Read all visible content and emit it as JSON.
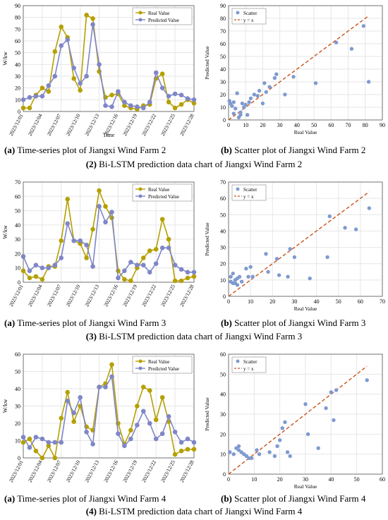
{
  "colors": {
    "real": "#b5a000",
    "predicted": "#7f86c8",
    "scatter": "#7f9ad0",
    "fit_line": "#c8531a",
    "grid": "#e6e6e6"
  },
  "x_dates": [
    "2023/12/01",
    "2023/12/02",
    "2023/12/03",
    "2023/12/04",
    "2023/12/05",
    "2023/12/06",
    "2023/12/07",
    "2023/12/08",
    "2023/12/09",
    "2023/12/10",
    "2023/12/11",
    "2023/12/12",
    "2023/12/13",
    "2023/12/14",
    "2023/12/15",
    "2023/12/16",
    "2023/12/17",
    "2023/12/18",
    "2023/12/19",
    "2023/12/20",
    "2023/12/21",
    "2023/12/22",
    "2023/12/23",
    "2023/12/24",
    "2023/12/25",
    "2023/12/26",
    "2023/12/27",
    "2023/12/28"
  ],
  "x_tick_labels": [
    "2023/12/01",
    "2023/12/04",
    "2023/12/07",
    "2023/12/10",
    "2023/12/13",
    "2023/12/16",
    "2023/12/19",
    "2023/12/22",
    "2023/12/25",
    "2023/12/28"
  ],
  "rows": [
    {
      "row_number": "(2)",
      "row_text": "Bi-LSTM prediction data chart of Jiangxi Wind Farm 2",
      "left_letter": "(a)",
      "left_text": "Time-series plot of Jiangxi Wind Farm 2",
      "right_letter": "(b)",
      "right_text": "Scatter plot of Jiangxi Wind Farm 2"
    },
    {
      "row_number": "(3)",
      "row_text": "Bi-LSTM prediction data chart of Jiangxi Wind Farm 3",
      "left_letter": "(a)",
      "left_text": "Time-series plot of Jiangxi Wind Farm 3",
      "right_letter": "(b)",
      "right_text": "Scatter plot of Jiangxi Wind Farm 3"
    },
    {
      "row_number": "(4)",
      "row_text": "Bi-LSTM prediction data chart of Jiangxi Wind Farm 4",
      "left_letter": "(a)",
      "left_text": "Time-series plot of Jiangxi Wind Farm 4",
      "right_letter": "(b)",
      "right_text": "Scatter plot of Jiangxi Wind Farm 4"
    }
  ],
  "chart_data": [
    {
      "type": "line",
      "farm": 2,
      "xlabel": "Time",
      "ylabel": "W/kw",
      "ylim": [
        0,
        90
      ],
      "yticks": [
        0,
        10,
        20,
        30,
        40,
        50,
        60,
        70,
        80,
        90
      ],
      "grid": true,
      "legend_position": "top-right",
      "series": [
        {
          "name": "Real Value",
          "values": [
            3,
            3,
            14,
            20,
            17,
            51,
            72,
            63,
            28,
            18,
            82,
            79,
            34,
            12,
            14,
            15,
            5,
            3,
            2,
            5,
            6,
            28,
            32,
            8,
            3,
            6,
            10,
            7
          ]
        },
        {
          "name": "Predicted Value",
          "values": [
            10,
            12,
            13,
            13,
            22,
            30,
            56,
            61,
            37,
            24,
            30,
            74,
            40,
            5,
            4,
            17,
            8,
            5,
            4,
            3,
            8,
            33,
            20,
            13,
            15,
            14,
            11,
            10
          ]
        }
      ]
    },
    {
      "type": "scatter",
      "farm": 2,
      "xlabel": "Real Value",
      "ylabel": "Predicted Value",
      "xlim": [
        0,
        90
      ],
      "ylim": [
        0,
        90
      ],
      "xticks": [
        0,
        10,
        20,
        30,
        40,
        50,
        60,
        70,
        80,
        90
      ],
      "yticks": [
        0,
        10,
        20,
        30,
        40,
        50,
        60,
        70,
        80,
        90
      ],
      "legend": [
        "Scatter",
        "y = x"
      ],
      "legend_position": "top-left",
      "points": [
        [
          0.5,
          15
        ],
        [
          1,
          13
        ],
        [
          2,
          11
        ],
        [
          3,
          14
        ],
        [
          3,
          5
        ],
        [
          4,
          9
        ],
        [
          5,
          21
        ],
        [
          6,
          2
        ],
        [
          7,
          6
        ],
        [
          7,
          4
        ],
        [
          8,
          13
        ],
        [
          9,
          10
        ],
        [
          10,
          12
        ],
        [
          11,
          4
        ],
        [
          12,
          14
        ],
        [
          13,
          17
        ],
        [
          15,
          20
        ],
        [
          17,
          19
        ],
        [
          18,
          23
        ],
        [
          20,
          13
        ],
        [
          21,
          29
        ],
        [
          22,
          22
        ],
        [
          24,
          26
        ],
        [
          27,
          33
        ],
        [
          28,
          36
        ],
        [
          33,
          20
        ],
        [
          38,
          34
        ],
        [
          51,
          29
        ],
        [
          63,
          61
        ],
        [
          72,
          56
        ],
        [
          79,
          74
        ],
        [
          82,
          30
        ]
      ]
    },
    {
      "type": "line",
      "farm": 3,
      "xlabel": "",
      "ylabel": "W/kw",
      "ylim": [
        0,
        70
      ],
      "yticks": [
        0,
        10,
        20,
        30,
        40,
        50,
        60,
        70
      ],
      "grid": true,
      "legend_position": "top-right",
      "series": [
        {
          "name": "Real Value",
          "values": [
            8,
            3,
            4,
            2,
            11,
            11,
            29,
            58,
            29,
            27,
            17,
            37,
            64,
            53,
            45,
            8,
            2,
            1,
            10,
            17,
            22,
            23,
            44,
            30,
            1,
            1,
            3,
            4
          ]
        },
        {
          "name": "Predicted Value",
          "values": [
            18,
            8,
            12,
            10,
            10,
            12,
            17,
            41,
            29,
            29,
            26,
            11,
            53,
            42,
            49,
            3,
            8,
            14,
            12,
            12,
            7,
            13,
            24,
            24,
            12,
            9,
            7,
            7
          ]
        }
      ]
    },
    {
      "type": "scatter",
      "farm": 3,
      "xlabel": "Real Value",
      "ylabel": "Predicted Value",
      "xlim": [
        0,
        70
      ],
      "ylim": [
        0,
        70
      ],
      "xticks": [
        0,
        10,
        20,
        30,
        40,
        50,
        60,
        70
      ],
      "yticks": [
        0,
        10,
        20,
        30,
        40,
        50,
        60,
        70
      ],
      "legend": [
        "Scatter",
        "y = x"
      ],
      "legend_position": "top-left",
      "points": [
        [
          1,
          12
        ],
        [
          1,
          9
        ],
        [
          2,
          8
        ],
        [
          2,
          14
        ],
        [
          3,
          8
        ],
        [
          3,
          10
        ],
        [
          4,
          7
        ],
        [
          4,
          11
        ],
        [
          5,
          12
        ],
        [
          6,
          9
        ],
        [
          8,
          17
        ],
        [
          9,
          12
        ],
        [
          10,
          18
        ],
        [
          11,
          12
        ],
        [
          17,
          26
        ],
        [
          18,
          15
        ],
        [
          22,
          23
        ],
        [
          23,
          13
        ],
        [
          27,
          12
        ],
        [
          28,
          29
        ],
        [
          30,
          24
        ],
        [
          37,
          11
        ],
        [
          45,
          24
        ],
        [
          46,
          49
        ],
        [
          53,
          42
        ],
        [
          58,
          41
        ],
        [
          64,
          54
        ]
      ]
    },
    {
      "type": "line",
      "farm": 4,
      "xlabel": "",
      "ylabel": "W/kw",
      "ylim": [
        0,
        60
      ],
      "yticks": [
        0,
        10,
        20,
        30,
        40,
        50,
        60
      ],
      "grid": true,
      "legend_position": "top-right",
      "series": [
        {
          "name": "Real Value",
          "values": [
            9,
            11,
            4,
            0,
            7,
            0,
            23,
            38,
            21,
            30,
            18,
            16,
            41,
            43,
            54,
            20,
            8,
            16,
            30,
            41,
            39,
            22,
            35,
            21,
            2,
            4,
            5,
            5
          ]
        },
        {
          "name": "Predicted Value",
          "values": [
            12,
            6,
            12,
            11,
            9,
            9,
            9,
            33,
            26,
            35,
            15,
            8,
            41,
            41,
            47,
            14,
            7,
            11,
            19,
            27,
            20,
            11,
            14,
            24,
            15,
            9,
            11,
            9
          ]
        }
      ]
    },
    {
      "type": "scatter",
      "farm": 4,
      "xlabel": "Real Value",
      "ylabel": "Predicted Value",
      "xlim": [
        0,
        60
      ],
      "ylim": [
        0,
        60
      ],
      "xticks": [
        0,
        10,
        20,
        30,
        40,
        50,
        60
      ],
      "yticks": [
        0,
        10,
        20,
        30,
        40,
        50,
        60
      ],
      "legend": [
        "Scatter",
        "y = x"
      ],
      "legend_position": "top-left",
      "points": [
        [
          0.5,
          11
        ],
        [
          2,
          10
        ],
        [
          3,
          13
        ],
        [
          4,
          12
        ],
        [
          4,
          14
        ],
        [
          5,
          11
        ],
        [
          6,
          10
        ],
        [
          7,
          9
        ],
        [
          8,
          8
        ],
        [
          9,
          8
        ],
        [
          11,
          12
        ],
        [
          12,
          10
        ],
        [
          16,
          11
        ],
        [
          18,
          9
        ],
        [
          19,
          14
        ],
        [
          20,
          17
        ],
        [
          21,
          23
        ],
        [
          22,
          26
        ],
        [
          23,
          11
        ],
        [
          24,
          9
        ],
        [
          30,
          35
        ],
        [
          31,
          20
        ],
        [
          35,
          13
        ],
        [
          38,
          33
        ],
        [
          40,
          41
        ],
        [
          41,
          27
        ],
        [
          42,
          42
        ],
        [
          54,
          47
        ]
      ]
    }
  ]
}
